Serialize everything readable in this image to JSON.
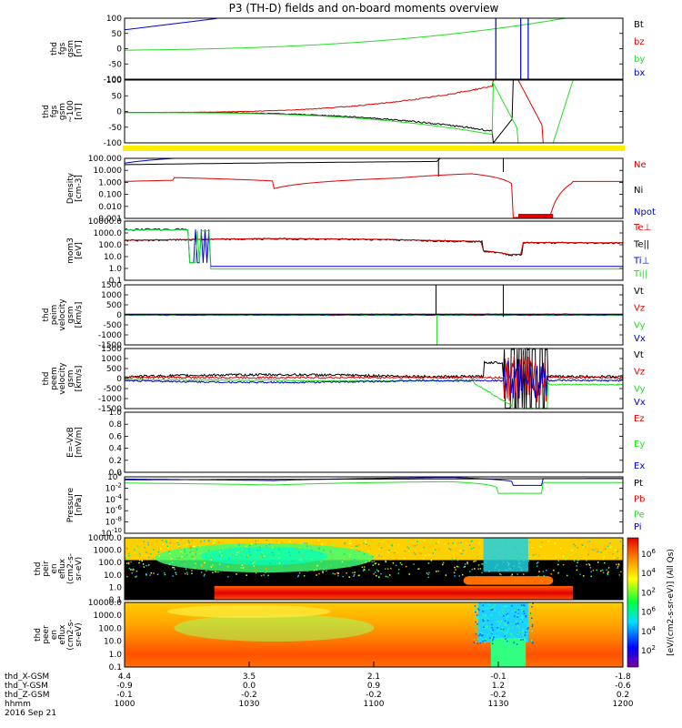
{
  "title": "P3 (TH-D) fields and on-board moments overview",
  "colors": {
    "black": "#000000",
    "red": "#e00000",
    "green": "#22dd22",
    "blue": "#0000cc",
    "yellow": "#ffee00"
  },
  "chart_data": [
    {
      "type": "line",
      "ylabel": [
        "thd",
        "fgs",
        "gsm",
        "[nT]"
      ],
      "yticks": [
        "100",
        "50",
        "0",
        "-50",
        "-100"
      ],
      "ylim": [
        -100,
        100
      ],
      "series": [
        {
          "name": "Bt",
          "color": "black"
        },
        {
          "name": "bz",
          "color": "red"
        },
        {
          "name": "by",
          "color": "green"
        },
        {
          "name": "bx",
          "color": "blue"
        }
      ]
    },
    {
      "type": "line",
      "ylabel": [
        "thd",
        "fgs",
        "gsm",
        "~100",
        "[nT]"
      ],
      "yticks": [
        "100",
        "50",
        "0",
        "-50",
        "-100"
      ],
      "ylim": [
        -100,
        100
      ],
      "series": [
        {
          "name": "",
          "color": "black"
        },
        {
          "name": "",
          "color": "red"
        },
        {
          "name": "",
          "color": "green"
        },
        {
          "name": "",
          "color": "blue"
        }
      ]
    },
    {
      "type": "line",
      "ylabel": [
        "Density",
        "[cm-3]"
      ],
      "yticks": [
        "100.000",
        "10.000",
        "1.000",
        "0.100",
        "0.010",
        "0.001"
      ],
      "ylim": [
        0.001,
        100
      ],
      "log": true,
      "series": [
        {
          "name": "Ne",
          "color": "red"
        },
        {
          "name": "Ni",
          "color": "black"
        },
        {
          "name": "Npot",
          "color": "blue"
        }
      ]
    },
    {
      "type": "line",
      "ylabel": [
        "mom3",
        "[eV]"
      ],
      "yticks": [
        "10000.0",
        "1000.0",
        "100.0",
        "10.0",
        "1.0",
        "0.1"
      ],
      "ylim": [
        0.1,
        10000
      ],
      "log": true,
      "series": [
        {
          "name": "Te⊥",
          "color": "red"
        },
        {
          "name": "Te||",
          "color": "black"
        },
        {
          "name": "Ti⊥",
          "color": "blue"
        },
        {
          "name": "Ti||",
          "color": "green"
        }
      ]
    },
    {
      "type": "line",
      "ylabel": [
        "thd",
        "peim",
        "velocity",
        "gsm",
        "[km/s]"
      ],
      "yticks": [
        "1500",
        "1000",
        "500",
        "0",
        "-500",
        "-1000",
        "-1500"
      ],
      "ylim": [
        -1500,
        1500
      ],
      "series": [
        {
          "name": "Vt",
          "color": "black"
        },
        {
          "name": "Vz",
          "color": "red"
        },
        {
          "name": "Vy",
          "color": "green"
        },
        {
          "name": "Vx",
          "color": "blue"
        }
      ]
    },
    {
      "type": "line",
      "ylabel": [
        "thd",
        "peem",
        "velocity",
        "gsm",
        "[km/s]"
      ],
      "yticks": [
        "1500",
        "1000",
        "500",
        "0",
        "-500",
        "-1000",
        "-1500"
      ],
      "ylim": [
        -1500,
        1500
      ],
      "series": [
        {
          "name": "Vt",
          "color": "black"
        },
        {
          "name": "Vz",
          "color": "red"
        },
        {
          "name": "Vy",
          "color": "green"
        },
        {
          "name": "Vx",
          "color": "blue"
        }
      ]
    },
    {
      "type": "line",
      "ylabel": [
        "E=-VxB",
        "[mV/m]"
      ],
      "yticks": [
        "1.0",
        "0.8",
        "0.6",
        "0.4",
        "0.2",
        "0.0"
      ],
      "ylim": [
        0,
        1
      ],
      "series": [
        {
          "name": "Ez",
          "color": "red"
        },
        {
          "name": "Ey",
          "color": "green"
        },
        {
          "name": "Ex",
          "color": "blue"
        }
      ]
    },
    {
      "type": "line",
      "ylabel": [
        "Pressure",
        "[nPa]"
      ],
      "yticks": [
        "10^0",
        "10^-2",
        "10^-4",
        "10^-6",
        "10^-8",
        "10^-10"
      ],
      "ylim": [
        1e-10,
        1
      ],
      "log": true,
      "series": [
        {
          "name": "Pt",
          "color": "black"
        },
        {
          "name": "Pb",
          "color": "red"
        },
        {
          "name": "Pe",
          "color": "green"
        },
        {
          "name": "Pi",
          "color": "blue"
        }
      ]
    },
    {
      "type": "heatmap",
      "ylabel": [
        "thd",
        "peir",
        "en",
        "eflux",
        "(cm2-s-",
        "sr-eV)"
      ],
      "yticks": [
        "10000.0",
        "1000.0",
        "100.0",
        "10.0",
        "1.0",
        "0.1"
      ],
      "ylim": [
        0.1,
        10000
      ],
      "log": true
    },
    {
      "type": "heatmap",
      "ylabel": [
        "thd",
        "peer",
        "en",
        "eflux",
        "(cm2-s-",
        "sr-eV)"
      ],
      "yticks": [
        "10000.0",
        "1000.0",
        "100.0",
        "10.0",
        "1.0",
        "0.1"
      ],
      "ylim": [
        0.1,
        10000
      ],
      "log": true
    }
  ],
  "colorbar": {
    "ticks": [
      "10^6",
      "10^4",
      "10^2",
      "10^6",
      "10^4",
      "10^2"
    ],
    "label": "[eV/(cm2-s-sr-eV)] (All Qs)"
  },
  "xaxis": {
    "row_labels": [
      "thd_X-GSM",
      "thd_Y-GSM",
      "thd_Z-GSM",
      "hhmm",
      "2016 Sep 21"
    ],
    "ticks": [
      {
        "x": "4.4",
        "y": "-0.9",
        "z": "-0.1",
        "t": "1000"
      },
      {
        "x": "3.5",
        "y": "0.0",
        "z": "-0.2",
        "t": "1030"
      },
      {
        "x": "2.1",
        "y": "0.9",
        "z": "-0.2",
        "t": "1100"
      },
      {
        "x": "-0.1",
        "y": "1.2",
        "z": "-0.2",
        "t": "1130"
      },
      {
        "x": "-1.8",
        "y": "-0.6",
        "z": "0.2",
        "t": "1200"
      }
    ]
  }
}
